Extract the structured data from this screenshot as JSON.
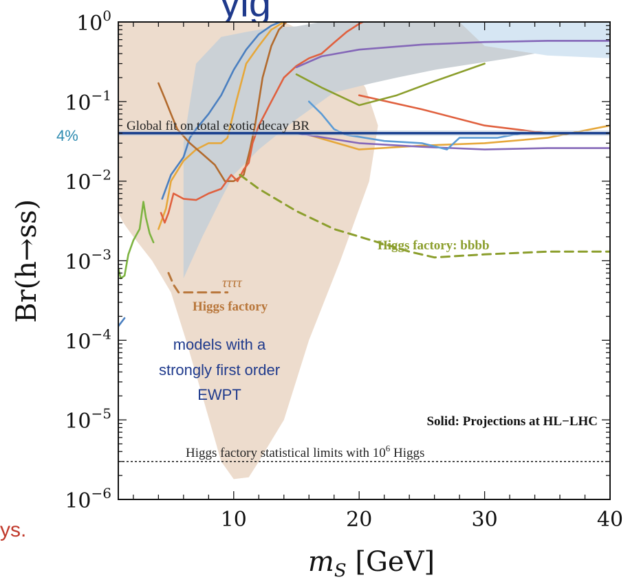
{
  "chart_data": {
    "type": "line",
    "title": "",
    "xlabel": "m_S [GeV]",
    "xlabel_main": "m",
    "xlabel_sub": "S",
    "xlabel_unit": " [GeV]",
    "ylabel": "Br(h→ss)",
    "xlim": [
      0.8,
      40
    ],
    "ylim": [
      1e-06,
      1
    ],
    "yscale": "log",
    "x_ticks": [
      10,
      20,
      30,
      40
    ],
    "x_tick_labels": [
      "10",
      "20",
      "30",
      "40"
    ],
    "y_ticks": [
      {
        "exp": 0,
        "value": 1
      },
      {
        "exp": -1,
        "value": 0.1
      },
      {
        "exp": -2,
        "value": 0.01
      },
      {
        "exp": -3,
        "value": 0.001
      },
      {
        "exp": -4,
        "value": 0.0001
      },
      {
        "exp": -5,
        "value": 1e-05
      },
      {
        "exp": -6,
        "value": 1e-06
      }
    ],
    "tick_base": "10",
    "grid": false,
    "regions": [
      {
        "name": "models with a strongly first order EWPT",
        "color": "#eddccd",
        "points": [
          [
            0.8,
            1
          ],
          [
            4.5,
            1
          ],
          [
            7,
            1
          ],
          [
            10,
            1
          ],
          [
            14,
            1
          ],
          [
            18,
            0.5
          ],
          [
            20.5,
            0.15
          ],
          [
            21.5,
            0.05
          ],
          [
            20.8,
            0.01
          ],
          [
            18.5,
            0.001
          ],
          [
            16,
            0.0001
          ],
          [
            14,
            1e-05
          ],
          [
            12,
            3e-06
          ],
          [
            11.2,
            1.9e-06
          ],
          [
            10,
            1.8e-06
          ],
          [
            9,
            3e-06
          ],
          [
            7.5,
            2e-05
          ],
          [
            6.2,
            0.0001
          ],
          [
            5,
            0.0004
          ],
          [
            3.5,
            0.001
          ],
          [
            2,
            0.002
          ],
          [
            1.2,
            0.003
          ],
          [
            0.8,
            0.004
          ]
        ]
      },
      {
        "name": "gray region",
        "color": "#cbd1d6",
        "points": [
          [
            6,
            0.0006
          ],
          [
            6,
            0.03
          ],
          [
            7,
            0.3
          ],
          [
            9,
            0.65
          ],
          [
            11,
            0.75
          ],
          [
            13,
            0.85
          ],
          [
            15,
            0.88
          ],
          [
            17,
            1
          ],
          [
            40,
            1
          ],
          [
            40,
            0.6
          ],
          [
            32,
            0.35
          ],
          [
            26,
            0.25
          ],
          [
            23,
            0.2
          ],
          [
            21,
            0.17
          ],
          [
            18,
            0.13
          ],
          [
            15,
            0.06
          ],
          [
            12,
            0.025
          ],
          [
            10,
            0.012
          ],
          [
            9,
            0.006
          ],
          [
            7.5,
            0.002
          ]
        ]
      },
      {
        "name": "light blue region",
        "color": "#d6e6f3",
        "points": [
          [
            28,
            1
          ],
          [
            40,
            1
          ],
          [
            40,
            0.35
          ],
          [
            35,
            0.38
          ],
          [
            30,
            0.5
          ]
        ]
      }
    ],
    "series": [
      {
        "color": "#4a7fc0",
        "style": "solid",
        "points": [
          [
            4.3,
            0.006
          ],
          [
            5,
            0.012
          ],
          [
            6,
            0.02
          ],
          [
            6.5,
            0.035
          ],
          [
            7,
            0.045
          ],
          [
            8,
            0.07
          ],
          [
            9,
            0.12
          ],
          [
            10,
            0.25
          ],
          [
            11,
            0.45
          ],
          [
            12,
            0.7
          ],
          [
            13,
            0.9
          ],
          [
            13.7,
            1
          ]
        ]
      },
      {
        "color": "#4a7fc0",
        "style": "solid",
        "points": [
          [
            0.8,
            0.00015
          ],
          [
            1.3,
            0.00019
          ]
        ]
      },
      {
        "color": "#e6a73a",
        "style": "solid",
        "points": [
          [
            4,
            0.0025
          ],
          [
            4.6,
            0.0045
          ],
          [
            5,
            0.01
          ],
          [
            6,
            0.018
          ],
          [
            7,
            0.025
          ],
          [
            8,
            0.03
          ],
          [
            9,
            0.03
          ],
          [
            9.5,
            0.035
          ],
          [
            10.2,
            0.1
          ],
          [
            11,
            0.3
          ],
          [
            12,
            0.5
          ],
          [
            13,
            0.8
          ],
          [
            14,
            1
          ]
        ]
      },
      {
        "color": "#e6a73a",
        "style": "solid",
        "points": [
          [
            16,
            0.038
          ],
          [
            20,
            0.025
          ],
          [
            25,
            0.028
          ],
          [
            30,
            0.03
          ],
          [
            35,
            0.035
          ],
          [
            40,
            0.05
          ]
        ]
      },
      {
        "color": "#b26a2d",
        "style": "solid",
        "points": [
          [
            4,
            0.17
          ],
          [
            4.5,
            0.11
          ],
          [
            5,
            0.07
          ],
          [
            5.5,
            0.045
          ],
          [
            6.5,
            0.03
          ],
          [
            7.5,
            0.022
          ],
          [
            8.5,
            0.016
          ],
          [
            9.3,
            0.01
          ],
          [
            10,
            0.01
          ],
          [
            10.8,
            0.012
          ],
          [
            11.3,
            0.025
          ],
          [
            11.7,
            0.05
          ],
          [
            12.3,
            0.2
          ],
          [
            13,
            0.5
          ],
          [
            13.6,
            0.8
          ],
          [
            14.2,
            1
          ]
        ]
      },
      {
        "color": "#e0603e",
        "style": "solid",
        "points": [
          [
            4.2,
            0.004
          ],
          [
            4.5,
            0.003
          ],
          [
            4.8,
            0.004
          ],
          [
            5.2,
            0.007
          ],
          [
            6,
            0.006
          ],
          [
            7,
            0.0058
          ],
          [
            8,
            0.007
          ],
          [
            9,
            0.008
          ],
          [
            9.8,
            0.012
          ],
          [
            10.3,
            0.01
          ],
          [
            10.8,
            0.014
          ],
          [
            11.2,
            0.017
          ],
          [
            11.5,
            0.03
          ],
          [
            12,
            0.05
          ],
          [
            13,
            0.1
          ],
          [
            14,
            0.2
          ],
          [
            15,
            0.28
          ],
          [
            16,
            0.35
          ],
          [
            17,
            0.4
          ],
          [
            18,
            0.55
          ],
          [
            19,
            0.75
          ],
          [
            20,
            0.95
          ],
          [
            20.3,
            1
          ]
        ]
      },
      {
        "color": "#e0603e",
        "style": "solid",
        "points": [
          [
            20,
            0.12
          ],
          [
            25,
            0.08
          ],
          [
            30,
            0.05
          ],
          [
            35,
            0.04
          ],
          [
            40,
            0.04
          ]
        ]
      },
      {
        "color": "#8467b8",
        "style": "solid",
        "points": [
          [
            15,
            0.27
          ],
          [
            17,
            0.37
          ],
          [
            20,
            0.45
          ],
          [
            25,
            0.52
          ],
          [
            30,
            0.56
          ],
          [
            35,
            0.58
          ],
          [
            40,
            0.58
          ]
        ]
      },
      {
        "color": "#8467b8",
        "style": "solid",
        "points": [
          [
            15,
            0.04
          ],
          [
            20,
            0.03
          ],
          [
            25,
            0.027
          ],
          [
            30,
            0.025
          ],
          [
            35,
            0.026
          ],
          [
            40,
            0.026
          ]
        ]
      },
      {
        "color": "#5b9bd5",
        "style": "solid",
        "points": [
          [
            16,
            0.1
          ],
          [
            17,
            0.07
          ],
          [
            18,
            0.045
          ],
          [
            19,
            0.038
          ],
          [
            20,
            0.036
          ],
          [
            22,
            0.032
          ],
          [
            25,
            0.03
          ],
          [
            27,
            0.025
          ],
          [
            28,
            0.035
          ],
          [
            31,
            0.035
          ],
          [
            33,
            0.04
          ],
          [
            40,
            0.04
          ]
        ]
      },
      {
        "color": "#8b9e2c",
        "style": "solid",
        "points": [
          [
            15,
            0.22
          ],
          [
            17,
            0.15
          ],
          [
            20,
            0.09
          ],
          [
            23,
            0.12
          ],
          [
            26,
            0.18
          ],
          [
            30,
            0.3
          ]
        ]
      },
      {
        "color": "#7cb340",
        "style": "solid",
        "points": [
          [
            0.8,
            0.0008
          ],
          [
            1,
            0.0006
          ],
          [
            1.3,
            0.00065
          ],
          [
            1.6,
            0.0012
          ],
          [
            2,
            0.0018
          ],
          [
            2.5,
            0.0025
          ],
          [
            2.8,
            0.0055
          ],
          [
            3,
            0.0035
          ],
          [
            3.3,
            0.0022
          ],
          [
            3.6,
            0.0017
          ]
        ]
      },
      {
        "color": "#8b9e2c",
        "style": "dashed",
        "points": [
          [
            10.5,
            0.012
          ],
          [
            12,
            0.008
          ],
          [
            15,
            0.0042
          ],
          [
            18,
            0.0025
          ],
          [
            21,
            0.0018
          ],
          [
            24,
            0.0013
          ],
          [
            26,
            0.0011
          ],
          [
            30,
            0.0012
          ],
          [
            35,
            0.0013
          ],
          [
            40,
            0.0013
          ]
        ]
      },
      {
        "color": "#b8763a",
        "style": "dashed",
        "points": [
          [
            4.8,
            0.0007
          ],
          [
            5.2,
            0.0005
          ],
          [
            5.6,
            0.0004
          ],
          [
            6.5,
            0.0004
          ],
          [
            8,
            0.0004
          ],
          [
            9.5,
            0.0004
          ]
        ]
      }
    ],
    "reference_lines": [
      {
        "value": 0.04,
        "color": "#143c8c",
        "style": "solid"
      },
      {
        "value": 3e-06,
        "color": "#111111",
        "style": "dotted"
      }
    ],
    "annotations": {
      "global_fit": "Global fit on total exotic decay BR",
      "four_percent": "4%",
      "higgs_bbbb": "Higgs factory: bbbb",
      "tautau": "ττττ",
      "higgs_factory": "Higgs factory",
      "model_line1": "models with a",
      "model_line2": "strongly first order",
      "model_line3": "EWPT",
      "solid_note": "Solid: Projections at HL−LHC",
      "stat_limit_prefix": "Higgs factory statistical limits with 10",
      "stat_limit_exp": "6",
      "stat_limit_suffix": " Higgs"
    }
  },
  "fragments": {
    "top_title": "yig",
    "left_text": "ys."
  }
}
